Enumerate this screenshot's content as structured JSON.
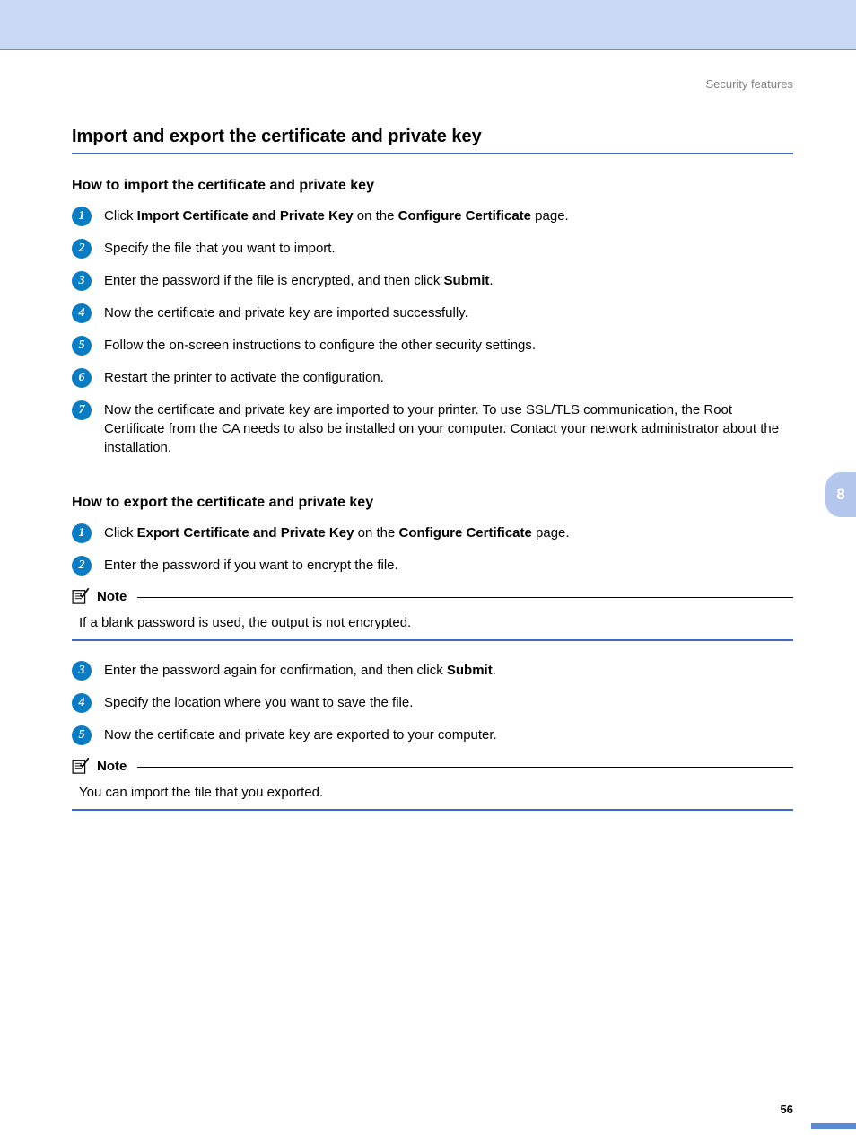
{
  "header": {
    "breadcrumb": "Security features"
  },
  "title": "Import and export the certificate and private key",
  "tab_number": "8",
  "page_number": "56",
  "import_section": {
    "heading": "How to import the certificate and private key",
    "steps": [
      {
        "n": "1",
        "html": "Click <b>Import Certificate and Private Key</b> on the <b>Configure Certificate</b> page."
      },
      {
        "n": "2",
        "html": "Specify the file that you want to import."
      },
      {
        "n": "3",
        "html": "Enter the password if the file is encrypted, and then click <b>Submit</b>."
      },
      {
        "n": "4",
        "html": "Now the certificate and private key are imported successfully."
      },
      {
        "n": "5",
        "html": "Follow the on-screen instructions to configure the other security settings."
      },
      {
        "n": "6",
        "html": "Restart the printer to activate the configuration."
      },
      {
        "n": "7",
        "html": "Now the certificate and private key are imported to your printer. To use SSL/TLS communication, the Root Certificate from the CA needs to also be installed on your computer. Contact your network administrator about the installation."
      }
    ]
  },
  "export_section": {
    "heading": "How to export the certificate and private key",
    "steps_a": [
      {
        "n": "1",
        "html": "Click <b>Export Certificate and Private Key</b> on the <b>Configure Certificate</b> page."
      },
      {
        "n": "2",
        "html": "Enter the password if you want to encrypt the file."
      }
    ],
    "note1": {
      "label": "Note",
      "body": "If a blank password is used, the output is not encrypted."
    },
    "steps_b": [
      {
        "n": "3",
        "html": "Enter the password again for confirmation, and then click <b>Submit</b>."
      },
      {
        "n": "4",
        "html": "Specify the location where you want to save the file."
      },
      {
        "n": "5",
        "html": "Now the certificate and private key are exported to your computer."
      }
    ],
    "note2": {
      "label": "Note",
      "body": "You can import the file that you exported."
    }
  },
  "colors": {
    "banner_bg": "#c9d8f5",
    "rule_blue": "#3b6bc7",
    "step_circle": "#0a7cc4",
    "tab_bg": "#b3c7ec"
  }
}
